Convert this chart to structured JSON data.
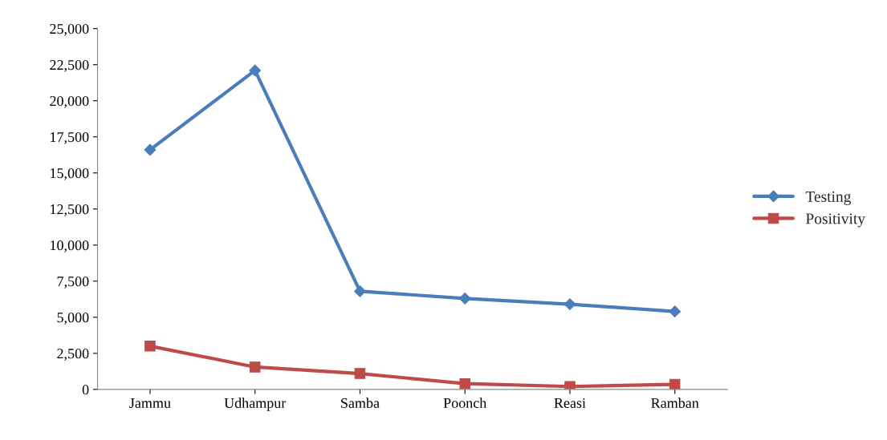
{
  "chart_data": {
    "type": "line",
    "categories": [
      "Jammu",
      "Udhampur",
      "Samba",
      "Poonch",
      "Reasi",
      "Ramban"
    ],
    "series": [
      {
        "name": "Testing",
        "color": "#4a7ebb",
        "marker": "diamond",
        "values": [
          16600,
          22100,
          6800,
          6300,
          5900,
          5400
        ]
      },
      {
        "name": "Positivity",
        "color": "#be4b48",
        "marker": "square",
        "values": [
          3000,
          1550,
          1100,
          400,
          200,
          350
        ]
      }
    ],
    "ylim": [
      0,
      25000
    ],
    "yticks": [
      {
        "value": 0,
        "label": "0"
      },
      {
        "value": 2500,
        "label": "2,500"
      },
      {
        "value": 5000,
        "label": "5,000"
      },
      {
        "value": 7500,
        "label": "7,500"
      },
      {
        "value": 10000,
        "label": "10,000"
      },
      {
        "value": 12500,
        "label": "12,500"
      },
      {
        "value": 15000,
        "label": "15,000"
      },
      {
        "value": 17500,
        "label": "17,500"
      },
      {
        "value": 20000,
        "label": "20,000"
      },
      {
        "value": 22500,
        "label": "22,500"
      },
      {
        "value": 25000,
        "label": "25,000"
      }
    ],
    "grid": false,
    "legend": "right"
  }
}
